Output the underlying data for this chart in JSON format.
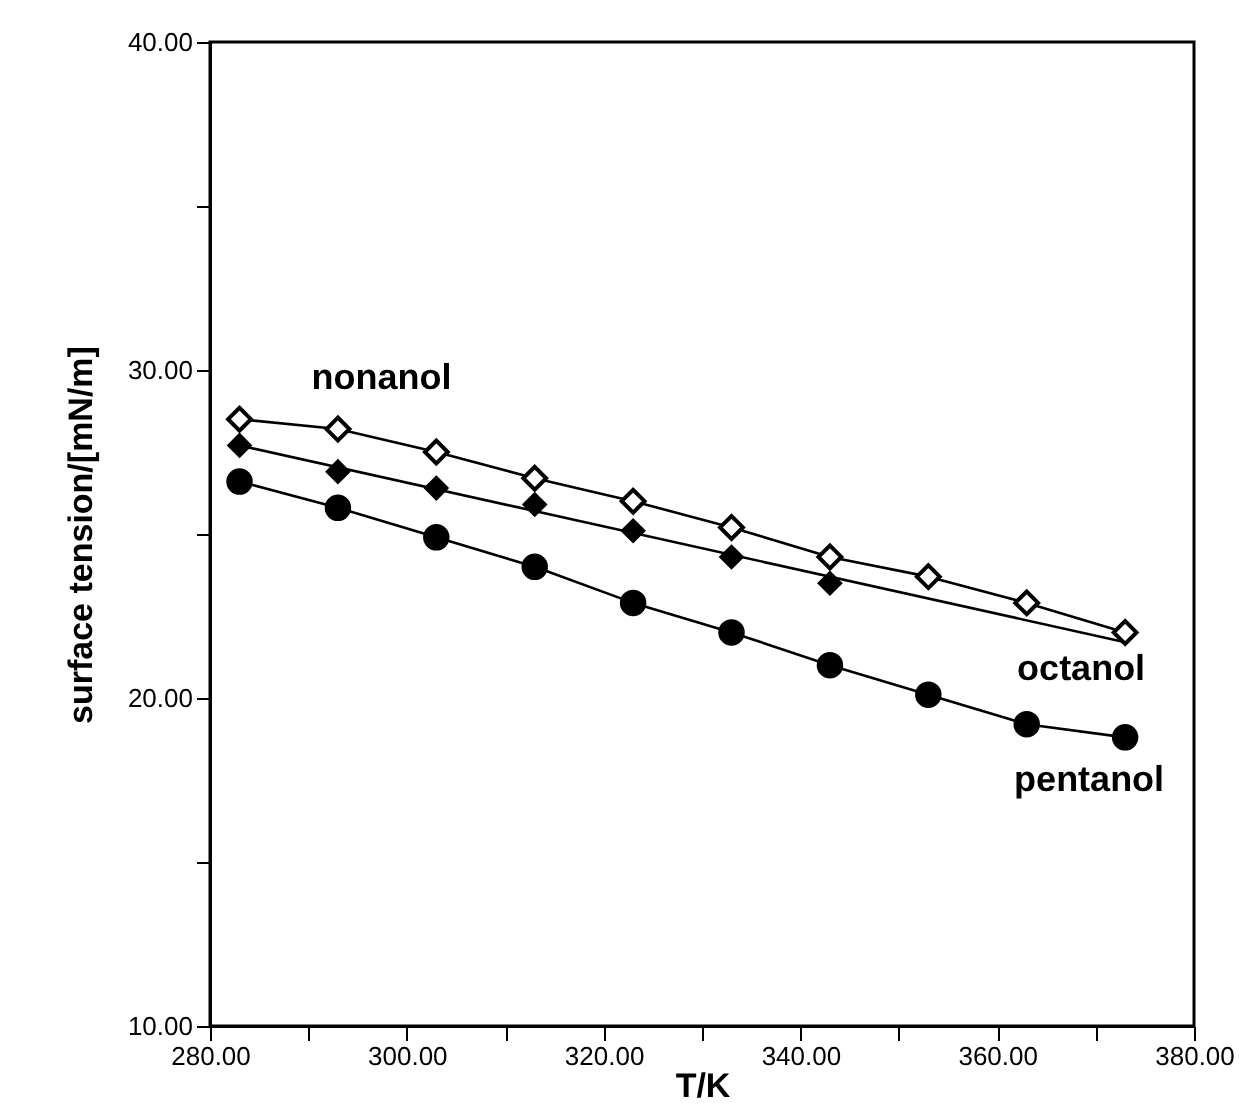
{
  "chart_data": {
    "type": "line",
    "xlabel": "T/K",
    "ylabel": "surface tension/[mN/m]",
    "xlim": [
      280,
      380
    ],
    "ylim": [
      10,
      40
    ],
    "xticks": [
      {
        "value": 280,
        "label": "280.00"
      },
      {
        "value": 290,
        "label": null
      },
      {
        "value": 300,
        "label": "300.00"
      },
      {
        "value": 310,
        "label": null
      },
      {
        "value": 320,
        "label": "320.00"
      },
      {
        "value": 330,
        "label": null
      },
      {
        "value": 340,
        "label": "340.00"
      },
      {
        "value": 350,
        "label": null
      },
      {
        "value": 360,
        "label": "360.00"
      },
      {
        "value": 370,
        "label": null
      },
      {
        "value": 380,
        "label": "380.00"
      }
    ],
    "yticks": [
      {
        "value": 10,
        "label": "10.00"
      },
      {
        "value": 15,
        "label": null
      },
      {
        "value": 20,
        "label": "20.00"
      },
      {
        "value": 25,
        "label": null
      },
      {
        "value": 30,
        "label": "30.00"
      },
      {
        "value": 35,
        "label": null
      },
      {
        "value": 40,
        "label": "40.00"
      }
    ],
    "grid": false,
    "series": [
      {
        "name": "nonanol",
        "type": "line",
        "marker": "diamond",
        "color": "#000000",
        "x": [
          283,
          293,
          303,
          313,
          323,
          333,
          343,
          353,
          363,
          373
        ],
        "values": [
          28.5,
          28.2,
          27.5,
          26.7,
          26.0,
          25.2,
          24.3,
          23.7,
          22.9,
          22.0
        ]
      },
      {
        "type": "scatter",
        "marker": "diamond",
        "color": "#000000",
        "x": [
          283,
          293,
          303,
          313,
          323,
          333,
          343
        ],
        "values": [
          27.7,
          26.9,
          26.4,
          25.9,
          25.1,
          24.3,
          23.5
        ]
      },
      {
        "name": "octanol",
        "type": "line",
        "marker": "none",
        "color": "#000000",
        "x": [
          283,
          373
        ],
        "values": [
          27.7,
          21.7
        ]
      },
      {
        "name": "pentanol",
        "type": "line",
        "marker": "circle",
        "color": "#000000",
        "x": [
          283,
          293,
          303,
          313,
          323,
          333,
          343,
          353,
          363,
          373
        ],
        "values": [
          26.6,
          25.8,
          24.9,
          24.0,
          22.9,
          22.0,
          21.0,
          20.1,
          19.2,
          18.8
        ]
      }
    ]
  }
}
